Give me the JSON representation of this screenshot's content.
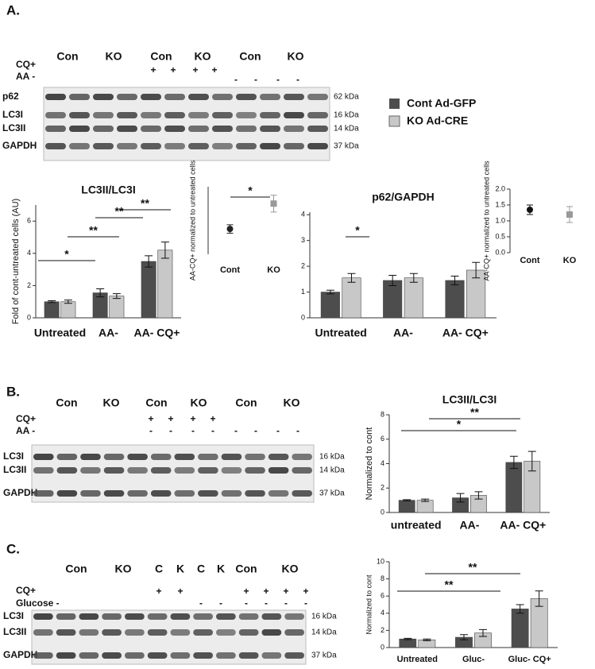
{
  "panel_labels": [
    "A.",
    "B.",
    "C."
  ],
  "legend": [
    {
      "name": "Cont Ad-GFP",
      "color": "#4d4d4d"
    },
    {
      "name": "KO Ad-CRE",
      "color": "#c8c8c8"
    }
  ],
  "blots": [
    {
      "groups": [
        "Con",
        "KO",
        "Con",
        "KO",
        "Con",
        "KO"
      ],
      "treatments": [
        "CQ+",
        "AA -"
      ],
      "plus": [
        "+",
        "+",
        "+",
        "+"
      ],
      "minus": [
        "-",
        "-",
        "-",
        "-"
      ],
      "rows": [
        "p62",
        "LC3I",
        "LC3II",
        "GAPDH"
      ],
      "markers": [
        "62 kDa",
        "16 kDa",
        "14 kDa",
        "37 kDa"
      ]
    },
    {
      "groups": [
        "Con",
        "KO",
        "Con",
        "KO",
        "Con",
        "KO"
      ],
      "treatments": [
        "CQ+",
        "AA -"
      ],
      "plus": [
        "+",
        "+",
        "+",
        "+"
      ],
      "minus": [
        "-",
        "-",
        "-",
        "-",
        "-",
        "-",
        "-",
        "-"
      ],
      "rows": [
        "LC3I",
        "LC3II",
        "GAPDH"
      ],
      "markers": [
        "16 kDa",
        "14 kDa",
        "37 kDa"
      ]
    },
    {
      "groups": [
        "Con",
        "KO",
        "C",
        "K",
        "C",
        "K",
        "Con",
        "KO"
      ],
      "treatments": [
        "CQ+",
        "Glucose -"
      ],
      "plus": [
        "+",
        "+",
        "+",
        "+",
        "+",
        "+"
      ],
      "minus": [
        "-",
        "-",
        "-",
        "-",
        "-",
        "-"
      ],
      "rows": [
        "LC3I",
        "LC3II",
        "GAPDH"
      ],
      "markers": [
        "16 kDa",
        "14 kDa",
        "37 kDa"
      ]
    }
  ],
  "chart_data": [
    {
      "type": "bar",
      "title": "LC3II/LC3I",
      "y_label": "Fold of cont-untreated cells (AU)",
      "categories": [
        "Untreated",
        "AA-",
        "AA- CQ+"
      ],
      "series": [
        {
          "name": "Cont Ad-GFP",
          "color": "#4d4d4d",
          "values": [
            1.0,
            1.55,
            3.5
          ],
          "errors": [
            0.06,
            0.25,
            0.35
          ]
        },
        {
          "name": "KO Ad-CRE",
          "color": "#c8c8c8",
          "values": [
            1.0,
            1.35,
            4.2
          ],
          "errors": [
            0.1,
            0.15,
            0.5
          ]
        }
      ],
      "ylim": [
        0,
        7
      ],
      "yticks": [
        0,
        2,
        4,
        6
      ],
      "annotations": [
        "*",
        "**",
        "**",
        "**"
      ]
    },
    {
      "type": "scatter",
      "y_label": "AA-CQ+ normalized to untreated cells",
      "categories": [
        "Cont",
        "KO"
      ],
      "colors": [
        "#222222",
        "#999999"
      ],
      "values": [
        3.5,
        5.0
      ],
      "errors": [
        0.25,
        0.5
      ],
      "ylim": [
        2,
        6
      ],
      "annotations": [
        "*"
      ]
    },
    {
      "type": "bar",
      "title": "p62/GAPDH",
      "categories": [
        "Untreated",
        "AA-",
        "AA- CQ+"
      ],
      "series": [
        {
          "name": "Cont Ad-GFP",
          "color": "#4d4d4d",
          "values": [
            1.0,
            1.45,
            1.45
          ],
          "errors": [
            0.07,
            0.2,
            0.17
          ]
        },
        {
          "name": "KO Ad-CRE",
          "color": "#c8c8c8",
          "values": [
            1.55,
            1.55,
            1.85
          ],
          "errors": [
            0.17,
            0.17,
            0.3
          ]
        }
      ],
      "ylim": [
        0,
        4.1
      ],
      "yticks": [
        0,
        1,
        2,
        3,
        4
      ],
      "annotations": [
        "*"
      ]
    },
    {
      "type": "scatter",
      "y_label": "AA-CQ+ normalized to untreated cells",
      "categories": [
        "Cont",
        "KO"
      ],
      "colors": [
        "#111111",
        "#999999"
      ],
      "values": [
        1.35,
        1.2
      ],
      "errors": [
        0.15,
        0.25
      ],
      "ylim": [
        0,
        2
      ],
      "yticks": [
        {
          "value": 0,
          "label": "0.0"
        },
        {
          "value": 0.5,
          "label": "0.5"
        },
        {
          "value": 1,
          "label": "1.0"
        },
        {
          "value": 1.5,
          "label": "1.5"
        },
        {
          "value": 2,
          "label": "2.0"
        }
      ]
    },
    {
      "type": "bar",
      "title": "LC3II/LC3I",
      "y_label": "Normalized to cont",
      "categories": [
        "untreated",
        "AA-",
        "AA- CQ+"
      ],
      "series": [
        {
          "name": "Cont Ad-GFP",
          "color": "#4d4d4d",
          "values": [
            1.0,
            1.2,
            4.1
          ],
          "errors": [
            0.05,
            0.35,
            0.5
          ]
        },
        {
          "name": "KO Ad-CRE",
          "color": "#c8c8c8",
          "values": [
            1.0,
            1.4,
            4.2
          ],
          "errors": [
            0.1,
            0.3,
            0.8
          ]
        }
      ],
      "ylim": [
        0,
        8
      ],
      "yticks": [
        0,
        2,
        4,
        6,
        8
      ],
      "annotations": [
        "*",
        "**"
      ]
    },
    {
      "type": "bar",
      "y_label": "Normalized to cont",
      "categories": [
        "Untreated",
        "Gluc-",
        "Gluc- CQ+"
      ],
      "series": [
        {
          "name": "Cont Ad-GFP",
          "color": "#4d4d4d",
          "values": [
            1.0,
            1.2,
            4.5
          ],
          "errors": [
            0.08,
            0.3,
            0.5
          ]
        },
        {
          "name": "KO Ad-CRE",
          "color": "#c8c8c8",
          "values": [
            0.9,
            1.7,
            5.7
          ],
          "errors": [
            0.1,
            0.4,
            0.9
          ]
        }
      ],
      "ylim": [
        0,
        10
      ],
      "yticks": [
        0,
        2,
        4,
        6,
        8,
        10
      ],
      "annotations": [
        "**",
        "**"
      ]
    }
  ]
}
